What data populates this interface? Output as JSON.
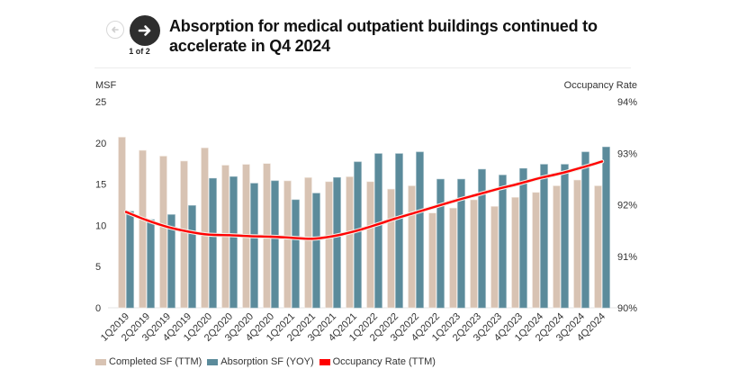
{
  "header": {
    "title": "Absorption for medical outpatient buildings continued to accelerate in Q4 2024",
    "pager": "1 of 2",
    "prev_icon": "arrow-left-icon",
    "next_icon": "arrow-right-icon"
  },
  "colors": {
    "completed": "#d8c3b3",
    "absorption": "#5b8b9b",
    "occupancy": "#ff0000"
  },
  "chart_data": {
    "type": "bar",
    "title": "Absorption for medical outpatient buildings continued to accelerate in Q4 2024",
    "xlabel": "",
    "ylabel": "MSF",
    "y2label": "Occupancy Rate",
    "ylim": [
      0,
      25
    ],
    "y2lim": [
      90,
      94
    ],
    "yticks": [
      "0",
      "5",
      "10",
      "15",
      "20",
      "25"
    ],
    "y2ticks": [
      "90%",
      "91%",
      "92%",
      "93%",
      "94%"
    ],
    "grid": false,
    "legend_position": "bottom-left",
    "categories": [
      "1Q2019",
      "2Q2019",
      "3Q2019",
      "4Q2019",
      "1Q2020",
      "2Q2020",
      "3Q2020",
      "4Q2020",
      "1Q2021",
      "2Q2021",
      "3Q2021",
      "4Q2021",
      "1Q2022",
      "2Q2022",
      "3Q2022",
      "4Q2022",
      "1Q2023",
      "2Q2023",
      "3Q2023",
      "4Q2023",
      "1Q2024",
      "2Q2024",
      "3Q2024",
      "4Q2024"
    ],
    "series": [
      {
        "name": "Completed SF (TTM)",
        "type": "bar",
        "axis": "left",
        "values": [
          20.7,
          19.1,
          18.4,
          17.8,
          19.4,
          17.3,
          17.4,
          17.5,
          15.4,
          15.8,
          15.3,
          15.9,
          15.3,
          14.4,
          14.8,
          11.5,
          12.1,
          13.1,
          12.3,
          13.4,
          14.0,
          14.8,
          15.5,
          14.8
        ]
      },
      {
        "name": "Absorption SF (YOY)",
        "type": "bar",
        "axis": "left",
        "values": [
          11.7,
          10.7,
          11.3,
          12.4,
          15.7,
          15.9,
          15.1,
          15.4,
          13.1,
          13.9,
          15.8,
          17.7,
          18.7,
          18.7,
          18.9,
          15.6,
          15.6,
          16.8,
          16.1,
          16.9,
          17.4,
          17.4,
          18.9,
          19.5
        ]
      },
      {
        "name": "Occupancy Rate (TTM)",
        "type": "line",
        "axis": "right",
        "values": [
          91.86,
          91.7,
          91.57,
          91.48,
          91.42,
          91.41,
          91.39,
          91.38,
          91.36,
          91.34,
          91.39,
          91.48,
          91.6,
          91.73,
          91.85,
          91.97,
          92.09,
          92.2,
          92.31,
          92.41,
          92.52,
          92.61,
          92.72,
          92.84
        ]
      }
    ]
  }
}
